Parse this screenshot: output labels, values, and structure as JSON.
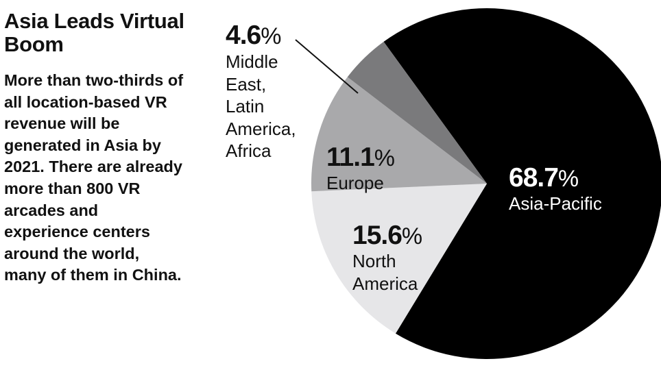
{
  "title": "Asia Leads Virtual Boom",
  "subtitle": "More than two-thirds of all location-based VR revenue will be generated in Asia by 2021. There are already more than 800 VR arcades and experience centers around the world, many of them in China.",
  "colors": {
    "asia_pacific": "#000000",
    "north_america": "#e6e6e8",
    "europe": "#a9a9ab",
    "middle_east_latam_africa": "#7a7a7c"
  },
  "chart_data": {
    "type": "pie",
    "title": "Asia Leads Virtual Boom",
    "unit": "%",
    "slices": [
      {
        "name": "Asia-Pacific",
        "value": 68.7,
        "value_label": "68.7",
        "color": "#000000"
      },
      {
        "name": "North America",
        "value": 15.6,
        "value_label": "15.6",
        "color": "#e6e6e8"
      },
      {
        "name": "Europe",
        "value": 11.1,
        "value_label": "11.1",
        "color": "#a9a9ab"
      },
      {
        "name": "Middle East, Latin America, Africa",
        "value": 4.6,
        "value_label": "4.6",
        "color": "#7a7a7c"
      }
    ],
    "labels": {
      "asia_pacific": {
        "value": "68.7",
        "name": "Asia-Pacific"
      },
      "north_america": {
        "value": "15.6",
        "name_lines": [
          "North",
          "America"
        ]
      },
      "europe": {
        "value": "11.1",
        "name": "Europe"
      },
      "middle_east": {
        "value": "4.6",
        "name_lines": [
          "Middle",
          "East,",
          "Latin",
          "America,",
          "Africa"
        ]
      }
    },
    "pct_symbol": "%"
  }
}
